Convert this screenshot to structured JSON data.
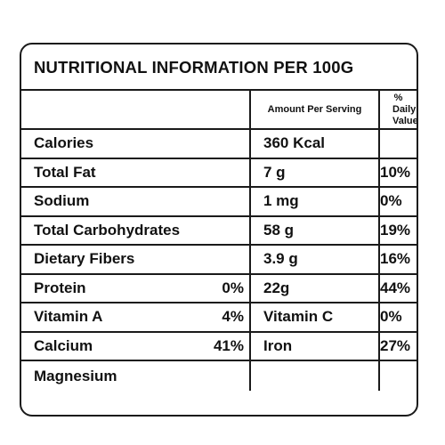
{
  "title": "NUTRITIONAL INFORMATION PER 100G",
  "table": {
    "header": [
      null,
      "Amount Per Serving",
      "% Daily Value"
    ],
    "rows": [
      [
        "Calories",
        null,
        "360 Kcal",
        null
      ],
      [
        "Total Fat",
        null,
        "7 g",
        "10%"
      ],
      [
        "Sodium",
        null,
        "1 mg",
        "0%"
      ],
      [
        "Total Carbohydrates",
        null,
        "58 g",
        "19%"
      ],
      [
        "Dietary Fibers",
        null,
        "3.9 g",
        "16%"
      ],
      [
        "Protein",
        "0%",
        "22g",
        "44%"
      ],
      [
        "Vitamin A",
        "4%",
        "Vitamin C",
        "0%"
      ],
      [
        "Calcium",
        "41%",
        "Iron",
        "27%"
      ],
      [
        "Magnesium",
        null,
        null,
        null
      ]
    ]
  }
}
